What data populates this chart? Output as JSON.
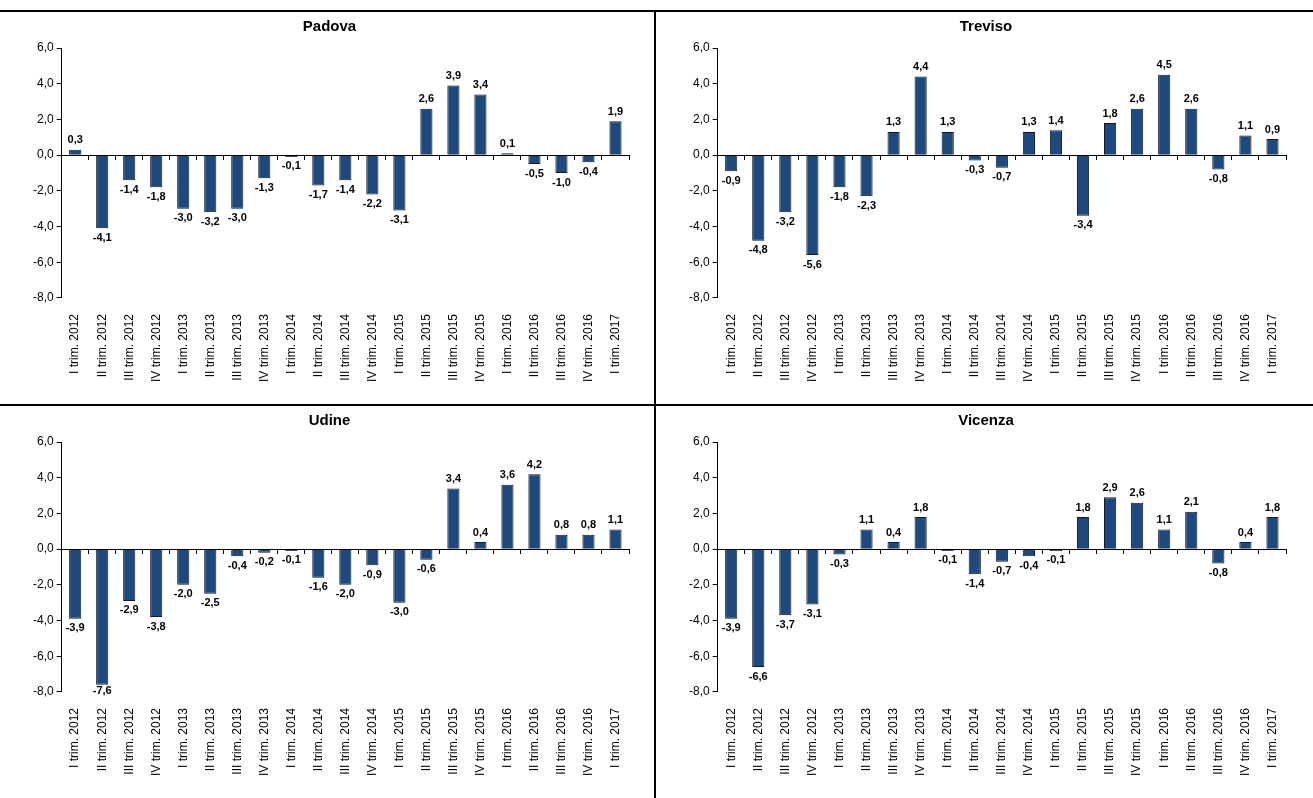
{
  "chart_data": [
    {
      "type": "bar",
      "title": "Padova",
      "categories": [
        "I trim. 2012",
        "II trim. 2012",
        "III trim. 2012",
        "IV trim. 2012",
        "I trim. 2013",
        "II trim. 2013",
        "III trim. 2013",
        "IV trim. 2013",
        "I trim. 2014",
        "II trim. 2014",
        "III trim. 2014",
        "IV trim. 2014",
        "I trim. 2015",
        "II trim. 2015",
        "III trim. 2015",
        "IV trim. 2015",
        "I trim. 2016",
        "II trim. 2016",
        "III trim. 2016",
        "IV trim. 2016",
        "I trim. 2017"
      ],
      "values": [
        0.3,
        -4.1,
        -1.4,
        -1.8,
        -3.0,
        -3.2,
        -3.0,
        -1.3,
        -0.1,
        -1.7,
        -1.4,
        -2.2,
        -3.1,
        2.6,
        3.9,
        3.4,
        0.1,
        -0.5,
        -1.0,
        -0.4,
        1.9
      ],
      "ref_lines": [
        {
          "axis": "y",
          "value": 0,
          "color": "#000000"
        }
      ],
      "value_labels": [
        "0,3",
        "-4,1",
        "-1,4",
        "-1,8",
        "-3,0",
        "-3,2",
        "-3,0",
        "-1,3",
        "-0,1",
        "-1,7",
        "-1,4",
        "-2,2",
        "-3,1",
        "2,6",
        "3,9",
        "3,4",
        "0,1",
        "-0,5",
        "-1,0",
        "-0,4",
        "1,9"
      ],
      "color": "#1f497d",
      "ylim": [
        -8,
        6
      ],
      "yticks": [
        {
          "value": -8,
          "label": "-8,0"
        },
        {
          "value": -6,
          "label": "-6,0"
        },
        {
          "value": -4,
          "label": "-4,0"
        },
        {
          "value": -2,
          "label": "-2,0"
        },
        {
          "value": 0,
          "label": "0,0"
        },
        {
          "value": 2,
          "label": "2,0"
        },
        {
          "value": 4,
          "label": "4,0"
        },
        {
          "value": 6,
          "label": "6,0"
        }
      ],
      "grid": false,
      "legend": false
    },
    {
      "type": "bar",
      "title": "Treviso",
      "categories": [
        "I trim. 2012",
        "II trim. 2012",
        "III trim. 2012",
        "IV trim. 2012",
        "I trim. 2013",
        "II trim. 2013",
        "III trim. 2013",
        "IV trim. 2013",
        "I trim. 2014",
        "II trim. 2014",
        "III trim. 2014",
        "IV trim. 2014",
        "I trim. 2015",
        "II trim. 2015",
        "III trim. 2015",
        "IV trim. 2015",
        "I trim. 2016",
        "II trim. 2016",
        "III trim. 2016",
        "IV trim. 2016",
        "I trim. 2017"
      ],
      "values": [
        -0.9,
        -4.8,
        -3.2,
        -5.6,
        -1.8,
        -2.3,
        1.3,
        4.4,
        1.3,
        -0.3,
        -0.7,
        1.3,
        1.4,
        -3.4,
        1.8,
        2.6,
        4.5,
        2.6,
        -0.8,
        1.1,
        0.9
      ],
      "ref_lines": [
        {
          "axis": "y",
          "value": 0,
          "color": "#000000"
        }
      ],
      "value_labels": [
        "-0,9",
        "-4,8",
        "-3,2",
        "-5,6",
        "-1,8",
        "-2,3",
        "1,3",
        "4,4",
        "1,3",
        "-0,3",
        "-0,7",
        "1,3",
        "1,4",
        "-3,4",
        "1,8",
        "2,6",
        "4,5",
        "2,6",
        "-0,8",
        "1,1",
        "0,9"
      ],
      "color": "#1f497d",
      "ylim": [
        -8,
        6
      ],
      "yticks": [
        {
          "value": -8,
          "label": "-8,0"
        },
        {
          "value": -6,
          "label": "-6,0"
        },
        {
          "value": -4,
          "label": "-4,0"
        },
        {
          "value": -2,
          "label": "-2,0"
        },
        {
          "value": 0,
          "label": "0,0"
        },
        {
          "value": 2,
          "label": "2,0"
        },
        {
          "value": 4,
          "label": "4,0"
        },
        {
          "value": 6,
          "label": "6,0"
        }
      ],
      "grid": false,
      "legend": false
    },
    {
      "type": "bar",
      "title": "Udine",
      "categories": [
        "I trim. 2012",
        "II trim. 2012",
        "III trim. 2012",
        "IV trim. 2012",
        "I trim. 2013",
        "II trim. 2013",
        "III trim. 2013",
        "IV trim. 2013",
        "I trim. 2014",
        "II trim. 2014",
        "III trim. 2014",
        "IV trim. 2014",
        "I trim. 2015",
        "II trim. 2015",
        "III trim. 2015",
        "IV trim. 2015",
        "I trim. 2016",
        "II trim. 2016",
        "III trim. 2016",
        "IV trim. 2016",
        "I trim. 2017"
      ],
      "values": [
        -3.9,
        -7.6,
        -2.9,
        -3.8,
        -2.0,
        -2.5,
        -0.4,
        -0.2,
        -0.1,
        -1.6,
        -2.0,
        -0.9,
        -3.0,
        -0.6,
        3.4,
        0.4,
        3.6,
        4.2,
        0.8,
        0.8,
        1.1
      ],
      "ref_lines": [
        {
          "axis": "y",
          "value": 0,
          "color": "#000000"
        }
      ],
      "value_labels": [
        "-3,9",
        "-7,6",
        "-2,9",
        "-3,8",
        "-2,0",
        "-2,5",
        "-0,4",
        "-0,2",
        "-0,1",
        "-1,6",
        "-2,0",
        "-0,9",
        "-3,0",
        "-0,6",
        "3,4",
        "0,4",
        "3,6",
        "4,2",
        "0,8",
        "0,8",
        "1,1"
      ],
      "color": "#1f497d",
      "ylim": [
        -8,
        6
      ],
      "yticks": [
        {
          "value": -8,
          "label": "-8,0"
        },
        {
          "value": -6,
          "label": "-6,0"
        },
        {
          "value": -4,
          "label": "-4,0"
        },
        {
          "value": -2,
          "label": "-2,0"
        },
        {
          "value": 0,
          "label": "0,0"
        },
        {
          "value": 2,
          "label": "2,0"
        },
        {
          "value": 4,
          "label": "4,0"
        },
        {
          "value": 6,
          "label": "6,0"
        }
      ],
      "grid": false,
      "legend": false
    },
    {
      "type": "bar",
      "title": "Vicenza",
      "categories": [
        "I trim. 2012",
        "II trim. 2012",
        "III trim. 2012",
        "IV trim. 2012",
        "I trim. 2013",
        "II trim. 2013",
        "III trim. 2013",
        "IV trim. 2013",
        "I trim. 2014",
        "II trim. 2014",
        "III trim. 2014",
        "IV trim. 2014",
        "I trim. 2015",
        "II trim. 2015",
        "III trim. 2015",
        "IV trim. 2015",
        "I trim. 2016",
        "II trim. 2016",
        "III trim. 2016",
        "IV trim. 2016",
        "I trim. 2017"
      ],
      "values": [
        -3.9,
        -6.6,
        -3.7,
        -3.1,
        -0.3,
        1.1,
        0.4,
        1.8,
        -0.1,
        -1.4,
        -0.7,
        -0.4,
        -0.1,
        1.8,
        2.9,
        2.6,
        1.1,
        2.1,
        -0.8,
        0.4,
        1.8
      ],
      "ref_lines": [
        {
          "axis": "y",
          "value": 0,
          "color": "#000000"
        }
      ],
      "value_labels": [
        "-3,9",
        "-6,6",
        "-3,7",
        "-3,1",
        "-0,3",
        "1,1",
        "0,4",
        "1,8",
        "-0,1",
        "-1,4",
        "-0,7",
        "-0,4",
        "-0,1",
        "1,8",
        "2,9",
        "2,6",
        "1,1",
        "2,1",
        "-0,8",
        "0,4",
        "1,8"
      ],
      "color": "#1f497d",
      "ylim": [
        -8,
        6
      ],
      "yticks": [
        {
          "value": -8,
          "label": "-8,0"
        },
        {
          "value": -6,
          "label": "-6,0"
        },
        {
          "value": -4,
          "label": "-4,0"
        },
        {
          "value": -2,
          "label": "-2,0"
        },
        {
          "value": 0,
          "label": "0,0"
        },
        {
          "value": 2,
          "label": "2,0"
        },
        {
          "value": 4,
          "label": "4,0"
        },
        {
          "value": 6,
          "label": "6,0"
        }
      ],
      "grid": false,
      "legend": false
    }
  ]
}
